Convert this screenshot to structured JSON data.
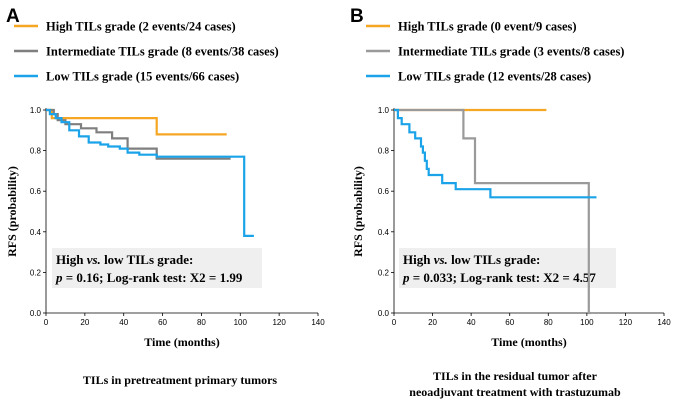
{
  "figure": {
    "captions": {
      "A": [
        "TILs in pretreatment primary tumors"
      ],
      "B": [
        "TILs in the residual tumor after",
        "neoadjuvant treatment with trastuzumab"
      ]
    }
  },
  "chart_data": [
    {
      "panel": "A",
      "type": "line",
      "subtype": "kaplan-meier",
      "xlabel": "Time (months)",
      "ylabel": "RFS (probability)",
      "xlim": [
        0,
        140
      ],
      "ylim": [
        0,
        1.0
      ],
      "xticks": [
        "0",
        "20",
        "40",
        "60",
        "80",
        "100",
        "120",
        "140"
      ],
      "yticks": [
        "0.0",
        "0.2",
        "0.4",
        "0.6",
        "0.8",
        "1.0"
      ],
      "annotation": {
        "line1": "High vs. low TILs grade:",
        "line2": "p = 0.16; Log-rank test: X2 = 1.99"
      },
      "series": [
        {
          "name": "High TILs grade (2 events/24 cases)",
          "color": "#F5A623",
          "x": [
            0,
            3,
            57,
            93
          ],
          "y": [
            1.0,
            0.96,
            0.88,
            0.88
          ]
        },
        {
          "name": "Intermediate TILs grade (8 events/38 cases)",
          "color": "#7F7F7F",
          "x": [
            0,
            4,
            6,
            10,
            18,
            26,
            34,
            42,
            57,
            95
          ],
          "y": [
            1.0,
            0.98,
            0.95,
            0.93,
            0.91,
            0.89,
            0.86,
            0.81,
            0.76,
            0.76
          ],
          "drop_x": 43
        },
        {
          "name": "Low TILs grade (15 events/66 cases)",
          "color": "#1AA3E8",
          "x": [
            0,
            2,
            5,
            8,
            12,
            17,
            22,
            28,
            32,
            38,
            42,
            48,
            57,
            75,
            102,
            107
          ],
          "y": [
            1.0,
            0.98,
            0.96,
            0.94,
            0.9,
            0.87,
            0.84,
            0.83,
            0.82,
            0.81,
            0.79,
            0.78,
            0.77,
            0.77,
            0.38,
            0.38
          ]
        }
      ]
    },
    {
      "panel": "B",
      "type": "line",
      "subtype": "kaplan-meier",
      "xlabel": "Time (months)",
      "ylabel": "RFS (probability)",
      "xlim": [
        0,
        140
      ],
      "ylim": [
        0,
        1.0
      ],
      "xticks": [
        "0",
        "20",
        "40",
        "60",
        "80",
        "100",
        "120",
        "140"
      ],
      "yticks": [
        "0.0",
        "0.2",
        "0.4",
        "0.6",
        "0.8",
        "1.0"
      ],
      "annotation": {
        "line1": "High vs. low TILs grade:",
        "line2": "p = 0.033; Log-rank test: X2 = 4.57"
      },
      "series": [
        {
          "name": "High TILs grade (0 event/9 cases)",
          "color": "#F5A623",
          "x": [
            0,
            79
          ],
          "y": [
            1.0,
            1.0
          ]
        },
        {
          "name": "Intermediate TILs grade (3 events/8 cases)",
          "color": "#9A9A9A",
          "x": [
            0,
            36,
            42,
            101,
            102
          ],
          "y": [
            1.0,
            0.86,
            0.64,
            0.0,
            0.0
          ]
        },
        {
          "name": "Low TILs grade (12 events/28 cases)",
          "color": "#1AA3E8",
          "x": [
            0,
            2,
            4,
            8,
            11,
            14,
            15,
            16,
            17,
            18,
            20,
            25,
            32,
            40,
            50,
            105
          ],
          "y": [
            1.0,
            0.96,
            0.93,
            0.89,
            0.86,
            0.82,
            0.79,
            0.75,
            0.71,
            0.68,
            0.68,
            0.64,
            0.61,
            0.61,
            0.57,
            0.57
          ]
        }
      ]
    }
  ]
}
